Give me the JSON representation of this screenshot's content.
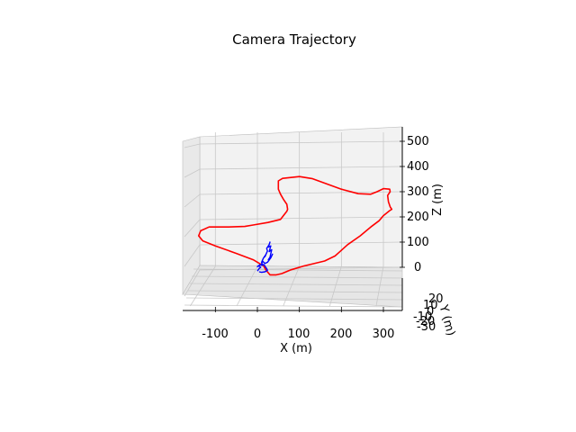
{
  "chart_data": {
    "type": "line",
    "projection": "3d",
    "title": "Camera Trajectory",
    "xlabel": "X (m)",
    "ylabel": "Y (m)",
    "zlabel": "Z (m)",
    "x_ticks": [
      "-100",
      "0",
      "100",
      "200",
      "300"
    ],
    "y_ticks": [
      "20",
      "10",
      "0",
      "-10",
      "-20",
      "-30"
    ],
    "z_ticks": [
      "500",
      "400",
      "300",
      "200",
      "100",
      "0"
    ],
    "xlim": [
      -175,
      345
    ],
    "zlim": [
      -50,
      520
    ],
    "grid": true,
    "series": [
      {
        "color": "#ff0000",
        "points": [
          [
            58,
            -25
          ],
          [
            80,
            -10
          ],
          [
            110,
            5
          ],
          [
            160,
            25
          ],
          [
            185,
            45
          ],
          [
            195,
            60
          ],
          [
            215,
            90
          ],
          [
            245,
            125
          ],
          [
            270,
            160
          ],
          [
            290,
            185
          ],
          [
            300,
            205
          ],
          [
            315,
            225
          ],
          [
            320,
            230
          ],
          [
            316,
            240
          ],
          [
            312,
            260
          ],
          [
            310,
            285
          ],
          [
            316,
            300
          ],
          [
            315,
            310
          ],
          [
            300,
            312
          ],
          [
            285,
            300
          ],
          [
            270,
            290
          ],
          [
            240,
            292
          ],
          [
            200,
            310
          ],
          [
            130,
            352
          ],
          [
            100,
            360
          ],
          [
            60,
            353
          ],
          [
            50,
            343
          ],
          [
            50,
            310
          ],
          [
            55,
            290
          ],
          [
            62,
            270
          ],
          [
            70,
            250
          ],
          [
            72,
            230
          ],
          [
            70,
            222
          ],
          [
            55,
            190
          ],
          [
            25,
            178
          ],
          [
            -10,
            168
          ],
          [
            -30,
            162
          ],
          [
            -70,
            160
          ],
          [
            -115,
            160
          ],
          [
            -135,
            145
          ],
          [
            -140,
            125
          ],
          [
            -130,
            105
          ],
          [
            -100,
            85
          ],
          [
            -50,
            55
          ],
          [
            -10,
            30
          ],
          [
            15,
            5
          ],
          [
            20,
            -10
          ],
          [
            30,
            -30
          ],
          [
            45,
            -30
          ],
          [
            58,
            -25
          ]
        ]
      },
      {
        "color": "#0000ff",
        "points": [
          [
            0,
            -15
          ],
          [
            4,
            -5
          ],
          [
            8,
            0
          ],
          [
            4,
            5
          ],
          [
            0,
            3
          ],
          [
            6,
            10
          ],
          [
            12,
            8
          ],
          [
            10,
            20
          ],
          [
            14,
            35
          ],
          [
            20,
            50
          ],
          [
            18,
            42
          ],
          [
            24,
            65
          ],
          [
            22,
            75
          ],
          [
            28,
            90
          ],
          [
            30,
            100
          ],
          [
            26,
            80
          ],
          [
            32,
            85
          ],
          [
            28,
            62
          ],
          [
            34,
            70
          ],
          [
            30,
            40
          ],
          [
            26,
            30
          ],
          [
            34,
            45
          ],
          [
            36,
            52
          ],
          [
            32,
            38
          ],
          [
            24,
            20
          ],
          [
            18,
            15
          ],
          [
            12,
            25
          ],
          [
            10,
            12
          ],
          [
            16,
            10
          ],
          [
            20,
            0
          ],
          [
            22,
            -5
          ],
          [
            24,
            -12
          ],
          [
            18,
            -18
          ],
          [
            10,
            -20
          ],
          [
            4,
            -18
          ]
        ]
      }
    ]
  }
}
